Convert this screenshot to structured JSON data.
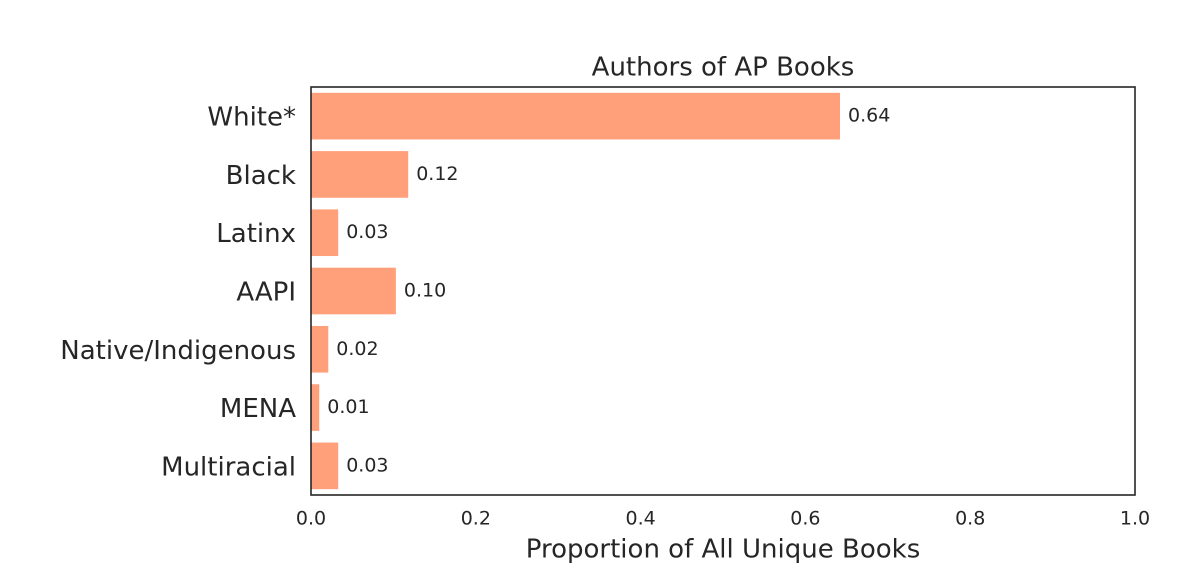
{
  "chart_data": {
    "type": "barh",
    "title": "Authors of AP Books",
    "xlabel": "Proportion of All Unique Books",
    "categories": [
      "White*",
      "Black",
      "Latinx",
      "AAPI",
      "Native/Indigenous",
      "MENA",
      "Multiracial"
    ],
    "values": [
      0.642,
      0.118,
      0.033,
      0.103,
      0.021,
      0.01,
      0.033
    ],
    "value_labels": [
      "0.64",
      "0.12",
      "0.03",
      "0.10",
      "0.02",
      "0.01",
      "0.03"
    ],
    "color": "#ffa07a",
    "xlim": [
      0,
      1
    ],
    "xticks": [
      {
        "value": 0,
        "label": "0.0"
      },
      0.2,
      0.4,
      0.6,
      0.8,
      {
        "value": 1,
        "label": "1.0"
      }
    ],
    "grid": false
  }
}
